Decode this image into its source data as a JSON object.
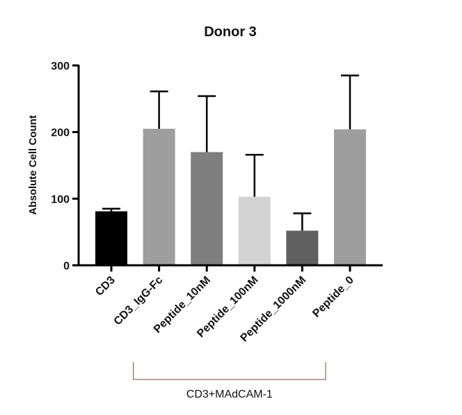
{
  "chart_data": {
    "type": "bar",
    "title": "Donor 3",
    "xlabel": "",
    "ylabel": "Absolute Cell Count",
    "ylim": [
      0,
      300
    ],
    "yticks": [
      0,
      100,
      200,
      300
    ],
    "categories": [
      "CD3",
      "CD3_IgG-Fc",
      "Peptide_10nM",
      "Peptide_100nM",
      "Peptide_1000nM",
      "Peptide_0"
    ],
    "values": [
      81,
      205,
      170,
      103,
      52,
      204
    ],
    "error_upper": [
      85,
      261,
      254,
      166,
      78,
      285
    ],
    "bar_colors": [
      "#000000",
      "#9e9e9e",
      "#7f7f7f",
      "#d3d3d3",
      "#5f5f5f",
      "#9e9e9e"
    ],
    "group_bracket": {
      "label": "CD3+MAdCAM-1",
      "from_category": 1,
      "to_category": 5,
      "color": "#7a4a3a"
    },
    "grid": false,
    "legend": "none"
  }
}
